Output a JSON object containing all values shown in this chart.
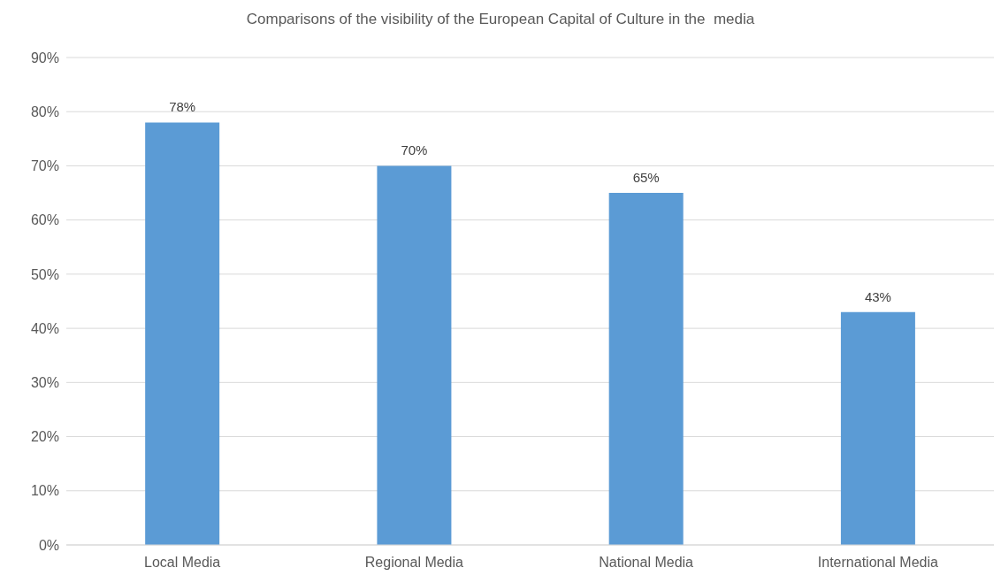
{
  "chart_data": {
    "type": "bar",
    "title": "Comparisons of the visibility of the European Capital of Culture in the  media",
    "categories": [
      "Local Media",
      "Regional Media",
      "National Media",
      "International Media"
    ],
    "values": [
      78,
      70,
      65,
      43
    ],
    "value_labels": [
      "78%",
      "70%",
      "65%",
      "43%"
    ],
    "color": "#5b9bd5",
    "ylim": [
      0,
      90
    ],
    "yticks": [
      {
        "value": 0,
        "label": "0%"
      },
      {
        "value": 10,
        "label": "10%"
      },
      {
        "value": 20,
        "label": "20%"
      },
      {
        "value": 30,
        "label": "30%"
      },
      {
        "value": 40,
        "label": "40%"
      },
      {
        "value": 50,
        "label": "50%"
      },
      {
        "value": 60,
        "label": "60%"
      },
      {
        "value": 70,
        "label": "70%"
      },
      {
        "value": 80,
        "label": "80%"
      },
      {
        "value": 90,
        "label": "90%"
      }
    ],
    "grid": "y"
  }
}
